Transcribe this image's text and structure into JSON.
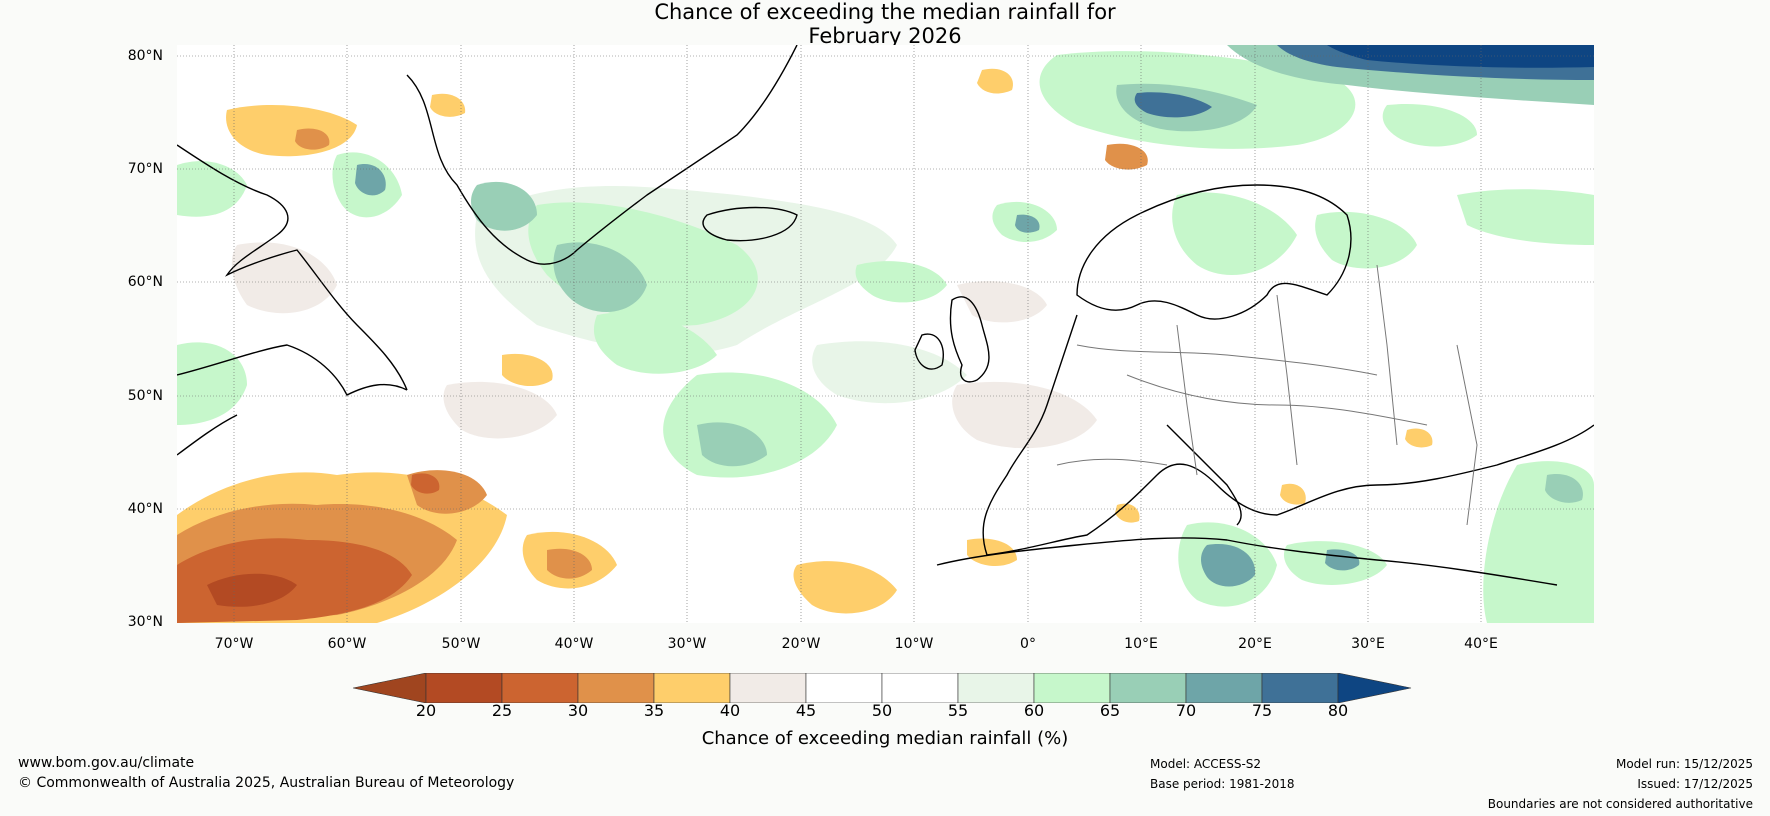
{
  "title": {
    "line1": "Chance of exceeding the median rainfall for",
    "line2": "February 2026"
  },
  "map": {
    "lat_labels": [
      "80°N",
      "70°N",
      "60°N",
      "50°N",
      "40°N",
      "30°N"
    ],
    "lon_labels": [
      "70°W",
      "60°W",
      "50°W",
      "40°W",
      "30°W",
      "20°W",
      "10°W",
      "0°",
      "10°E",
      "20°E",
      "30°E",
      "40°E"
    ]
  },
  "colorbar": {
    "ticks": [
      "20",
      "25",
      "30",
      "35",
      "40",
      "45",
      "50",
      "55",
      "60",
      "65",
      "70",
      "75",
      "80"
    ],
    "colors": [
      "#a0451f",
      "#b34a23",
      "#cc6430",
      "#e0914a",
      "#fece6b",
      "#f1ebe7",
      "#ffffff",
      "#ffffff",
      "#e8f5e8",
      "#c6f7cb",
      "#99cfb6",
      "#6ea5a8",
      "#3f7197",
      "#0e4582"
    ],
    "label": "Chance of exceeding median rainfall (%)"
  },
  "footer": {
    "website": "www.bom.gov.au/climate",
    "copyright": "© Commonwealth of Australia 2025, Australian Bureau of Meteorology",
    "model": "Model: ACCESS-S2",
    "base_period": "Base period: 1981-2018",
    "model_run": "Model run: 15/12/2025",
    "issued": "Issued: 17/12/2025",
    "disclaimer": "Boundaries are not considered authoritative"
  }
}
